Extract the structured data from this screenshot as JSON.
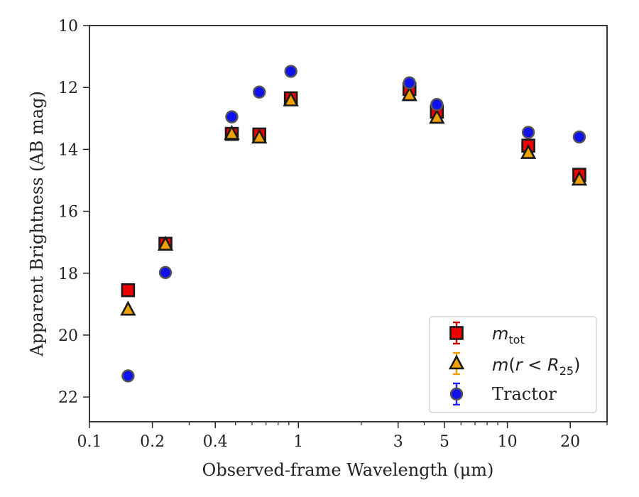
{
  "chart_data": {
    "type": "scatter",
    "xlabel": "Observed-frame Wavelength (μm)",
    "ylabel": "Apparent Brightness (AB mag)",
    "xscale": "log",
    "xlim": [
      0.1,
      30
    ],
    "ylim": [
      22.8,
      10
    ],
    "y_inverted": true,
    "x_ticks": [
      {
        "value": 0.1,
        "label": "0.1"
      },
      {
        "value": 0.2,
        "label": "0.2"
      },
      {
        "value": 0.4,
        "label": "0.4"
      },
      {
        "value": 1,
        "label": "1"
      },
      {
        "value": 3,
        "label": "3"
      },
      {
        "value": 5,
        "label": "5"
      },
      {
        "value": 10,
        "label": "10"
      },
      {
        "value": 20,
        "label": "20"
      }
    ],
    "y_ticks": [
      {
        "value": 10,
        "label": "10"
      },
      {
        "value": 12,
        "label": "12"
      },
      {
        "value": 14,
        "label": "14"
      },
      {
        "value": 16,
        "label": "16"
      },
      {
        "value": 18,
        "label": "18"
      },
      {
        "value": 20,
        "label": "20"
      },
      {
        "value": 22,
        "label": "22"
      }
    ],
    "grid": false,
    "legend_position": "bottom-right",
    "series": [
      {
        "name": "m_tot",
        "marker": "square",
        "color": "#ee0000",
        "edge_color": "#1a1a1a",
        "errorbar_color": "#cc0000",
        "points": [
          {
            "x": 0.153,
            "y": 18.55
          },
          {
            "x": 0.231,
            "y": 17.05
          },
          {
            "x": 0.48,
            "y": 13.5
          },
          {
            "x": 0.65,
            "y": 13.52
          },
          {
            "x": 0.92,
            "y": 12.35
          },
          {
            "x": 3.4,
            "y": 12.05
          },
          {
            "x": 4.6,
            "y": 12.78
          },
          {
            "x": 12.6,
            "y": 13.88
          },
          {
            "x": 22.1,
            "y": 14.82
          }
        ]
      },
      {
        "name": "m(r<R25)",
        "marker": "triangle",
        "color": "#f0a000",
        "edge_color": "#1a1a1a",
        "errorbar_color": "#f0a000",
        "points": [
          {
            "x": 0.153,
            "y": 19.18
          },
          {
            "x": 0.231,
            "y": 17.08
          },
          {
            "x": 0.48,
            "y": 13.5
          },
          {
            "x": 0.65,
            "y": 13.62
          },
          {
            "x": 0.92,
            "y": 12.42
          },
          {
            "x": 3.4,
            "y": 12.25
          },
          {
            "x": 4.6,
            "y": 12.98
          },
          {
            "x": 12.6,
            "y": 14.12
          },
          {
            "x": 22.1,
            "y": 14.98
          }
        ]
      },
      {
        "name": "Tractor",
        "marker": "circle",
        "color": "#1111ee",
        "edge_color": "#555555",
        "errorbar_color": "#2222ff",
        "points": [
          {
            "x": 0.153,
            "y": 21.32
          },
          {
            "x": 0.231,
            "y": 17.98
          },
          {
            "x": 0.48,
            "y": 12.95
          },
          {
            "x": 0.65,
            "y": 12.15
          },
          {
            "x": 0.92,
            "y": 11.48
          },
          {
            "x": 3.4,
            "y": 11.85
          },
          {
            "x": 4.6,
            "y": 12.55
          },
          {
            "x": 12.6,
            "y": 13.45
          },
          {
            "x": 22.1,
            "y": 13.6
          }
        ]
      }
    ]
  },
  "legend": {
    "tractor_label": "Tractor"
  }
}
